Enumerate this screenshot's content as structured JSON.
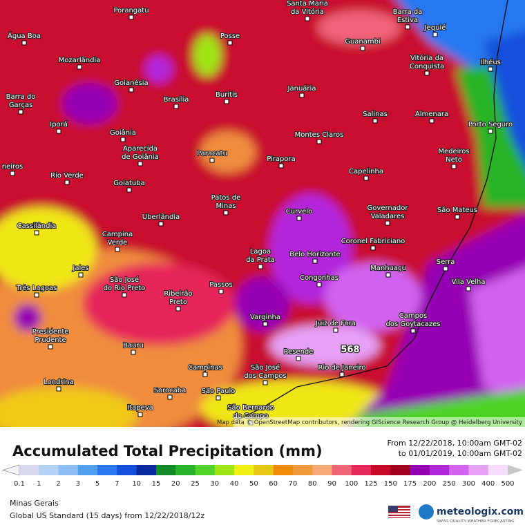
{
  "map": {
    "places": [
      {
        "lines": [
          "Porangatu"
        ]
      },
      {
        "lines": [
          "Santa Maria",
          "da Vitória"
        ]
      },
      {
        "lines": [
          "Barra da",
          "Estiva"
        ]
      },
      {
        "lines": [
          "Jequié"
        ]
      },
      {
        "lines": [
          "Água Boa"
        ]
      },
      {
        "lines": [
          "Posse"
        ]
      },
      {
        "lines": [
          "Guanambi"
        ]
      },
      {
        "lines": [
          "Vitória da",
          "Conquista"
        ]
      },
      {
        "lines": [
          "Mozarlândia"
        ]
      },
      {
        "lines": [
          "Ilhéus"
        ]
      },
      {
        "lines": [
          "Goianésia"
        ]
      },
      {
        "lines": [
          "Buritis"
        ]
      },
      {
        "lines": [
          "Januária"
        ]
      },
      {
        "lines": [
          "Barra do",
          "Garças"
        ]
      },
      {
        "lines": [
          "Brasília"
        ]
      },
      {
        "lines": [
          "Salinas"
        ]
      },
      {
        "lines": [
          "Almenara"
        ]
      },
      {
        "lines": [
          "Porto Seguro"
        ]
      },
      {
        "lines": [
          "Iporá"
        ]
      },
      {
        "lines": [
          "Goiânia"
        ]
      },
      {
        "lines": [
          "Montes Claros"
        ]
      },
      {
        "lines": [
          "Aparecida",
          "de Goiânia"
        ]
      },
      {
        "lines": [
          "Paracatu"
        ]
      },
      {
        "lines": [
          "Medeiros",
          "Neto"
        ]
      },
      {
        "lines": [
          "Pirapora"
        ]
      },
      {
        "lines": [
          "Capelinha"
        ]
      },
      {
        "lines": [
          "Rio Verde"
        ]
      },
      {
        "lines": [
          "Goiatuba"
        ]
      },
      {
        "lines": [
          "Patos de",
          "Minas"
        ]
      },
      {
        "lines": [
          "Governador",
          "Valadares"
        ]
      },
      {
        "lines": [
          "São Mateus"
        ]
      },
      {
        "lines": [
          "Curvelo"
        ]
      },
      {
        "lines": [
          "Uberlândia"
        ]
      },
      {
        "lines": [
          "Cassilândia"
        ]
      },
      {
        "lines": [
          "Campina",
          "Verde"
        ]
      },
      {
        "lines": [
          "Coronel Fabriciano"
        ]
      },
      {
        "lines": [
          "Serra"
        ]
      },
      {
        "lines": [
          "Lagoa",
          "da Prata"
        ]
      },
      {
        "lines": [
          "Belo Horizonte"
        ]
      },
      {
        "lines": [
          "Manhuaçu"
        ]
      },
      {
        "lines": [
          "Vila Velha"
        ]
      },
      {
        "lines": [
          "Jales"
        ]
      },
      {
        "lines": [
          "Passos"
        ]
      },
      {
        "lines": [
          "Congonhas"
        ]
      },
      {
        "lines": [
          "São José",
          "do Rio Preto"
        ]
      },
      {
        "lines": [
          "Três Lagoas"
        ]
      },
      {
        "lines": [
          "Ribeirão",
          "Preto"
        ]
      },
      {
        "lines": [
          "Campos",
          "dos Goytacazes"
        ]
      },
      {
        "lines": [
          "Varginha"
        ]
      },
      {
        "lines": [
          "Juiz de Fora"
        ]
      },
      {
        "lines": [
          "Presidente",
          "Prudente"
        ]
      },
      {
        "lines": [
          "Bauru"
        ]
      },
      {
        "lines": [
          "Resende"
        ]
      },
      {
        "lines": [
          "Campinas"
        ]
      },
      {
        "lines": [
          "São José",
          "dos Campos"
        ]
      },
      {
        "lines": [
          "Rio de Janeiro"
        ]
      },
      {
        "lines": [
          "Londrina"
        ]
      },
      {
        "lines": [
          "Sorocaba"
        ]
      },
      {
        "lines": [
          "São Paulo"
        ]
      },
      {
        "lines": [
          "Itapeva"
        ]
      },
      {
        "lines": [
          "São Bernardo",
          "do Campo"
        ]
      },
      {
        "lines": [
          "neiros"
        ]
      }
    ],
    "max_label": "568",
    "attribution": "Map data © OpenStreetMap contributors, rendering GIScience Research Group @ Heidelberg University"
  },
  "footer": {
    "title": "Accumulated Total Precipitation (mm)",
    "from": "From 12/22/2018, 10:00am GMT-02",
    "to": "to 01/01/2019, 10:00am GMT-02",
    "region": "Minas Gerais",
    "model": "Global US Standard (15 days) from 12/22/2018/12z",
    "brand": "meteologix.com",
    "tagline": "SWISS QUALITY WEATHER FORECASTING"
  },
  "legend": {
    "levels": [
      {
        "value": 0.1,
        "color": "#d8d8f0"
      },
      {
        "value": 1,
        "color": "#b4d2f5"
      },
      {
        "value": 2,
        "color": "#8cbef5"
      },
      {
        "value": 3,
        "color": "#50a0f0"
      },
      {
        "value": 5,
        "color": "#2878f0"
      },
      {
        "value": 7,
        "color": "#1450dc"
      },
      {
        "value": 10,
        "color": "#0a28a0"
      },
      {
        "value": 15,
        "color": "#148c28"
      },
      {
        "value": 20,
        "color": "#28b428"
      },
      {
        "value": 25,
        "color": "#50d228"
      },
      {
        "value": 30,
        "color": "#a0e614"
      },
      {
        "value": 40,
        "color": "#f0f014"
      },
      {
        "value": 50,
        "color": "#e6c814"
      },
      {
        "value": 60,
        "color": "#f08c0a"
      },
      {
        "value": 70,
        "color": "#f09a3c"
      },
      {
        "value": 80,
        "color": "#f5aa78"
      },
      {
        "value": 90,
        "color": "#f06478"
      },
      {
        "value": 100,
        "color": "#e6285a"
      },
      {
        "value": 125,
        "color": "#c80a28"
      },
      {
        "value": 150,
        "color": "#a0001e"
      },
      {
        "value": 175,
        "color": "#9600b4"
      },
      {
        "value": 200,
        "color": "#b428dc"
      },
      {
        "value": 250,
        "color": "#d264f0"
      },
      {
        "value": 300,
        "color": "#e6a0f5"
      },
      {
        "value": 400,
        "color": "#f5dcfa"
      },
      {
        "value": 500,
        "color": "#c8c8c8"
      }
    ]
  }
}
